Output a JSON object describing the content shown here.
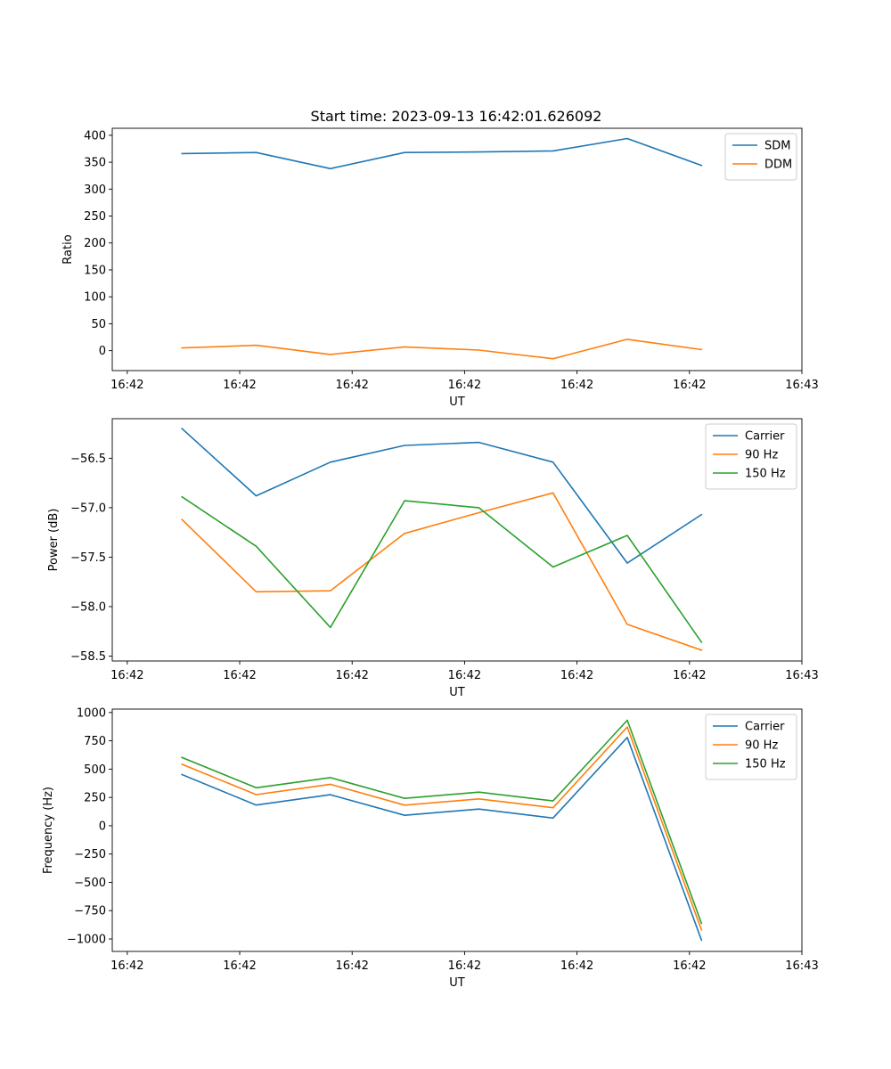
{
  "figure": {
    "title": "Start time: 2023-09-13 16:42:01.626092"
  },
  "chart_data": [
    {
      "type": "line",
      "title": "Start time: 2023-09-13 16:42:01.626092",
      "xlabel": "UT",
      "ylabel": "Ratio",
      "xlim": [
        -0.2,
        9.0
      ],
      "ylim": [
        -37,
        413
      ],
      "x_ticks": [
        {
          "value": 0,
          "label": "16:42"
        },
        {
          "value": 1.5,
          "label": "16:42"
        },
        {
          "value": 3,
          "label": "16:42"
        },
        {
          "value": 4.5,
          "label": "16:42"
        },
        {
          "value": 6,
          "label": "16:42"
        },
        {
          "value": 7.5,
          "label": "16:42"
        },
        {
          "value": 9,
          "label": "16:43"
        }
      ],
      "y_ticks": [
        {
          "value": 400,
          "label": "400"
        },
        {
          "value": 350,
          "label": "350"
        },
        {
          "value": 300,
          "label": "300"
        },
        {
          "value": 250,
          "label": "250"
        },
        {
          "value": 200,
          "label": "200"
        },
        {
          "value": 150,
          "label": "150"
        },
        {
          "value": 100,
          "label": "100"
        },
        {
          "value": 50,
          "label": "50"
        },
        {
          "value": 0,
          "label": "0"
        }
      ],
      "x": [
        0.73,
        1.72,
        2.71,
        3.7,
        4.69,
        5.68,
        6.67,
        7.66
      ],
      "series": [
        {
          "name": "SDM",
          "color": "#1f77b4",
          "values": [
            366,
            368,
            338,
            368,
            369,
            371,
            394,
            344
          ]
        },
        {
          "name": "DDM",
          "color": "#ff7f0e",
          "values": [
            5,
            10,
            -7,
            7,
            1,
            -15,
            21,
            2
          ]
        }
      ],
      "legend": "upper-right"
    },
    {
      "type": "line",
      "xlabel": "UT",
      "ylabel": "Power (dB)",
      "xlim": [
        -0.2,
        9.0
      ],
      "ylim": [
        -58.55,
        -56.1
      ],
      "x_ticks": [
        {
          "value": 0,
          "label": "16:42"
        },
        {
          "value": 1.5,
          "label": "16:42"
        },
        {
          "value": 3,
          "label": "16:42"
        },
        {
          "value": 4.5,
          "label": "16:42"
        },
        {
          "value": 6,
          "label": "16:42"
        },
        {
          "value": 7.5,
          "label": "16:42"
        },
        {
          "value": 9,
          "label": "16:43"
        }
      ],
      "y_ticks": [
        {
          "value": -56.5,
          "label": "−56.5"
        },
        {
          "value": -57.0,
          "label": "−57.0"
        },
        {
          "value": -57.5,
          "label": "−57.5"
        },
        {
          "value": -58.0,
          "label": "−58.0"
        },
        {
          "value": -58.5,
          "label": "−58.5"
        }
      ],
      "x": [
        0.73,
        1.72,
        2.71,
        3.7,
        4.69,
        5.68,
        6.67,
        7.66
      ],
      "series": [
        {
          "name": "Carrier",
          "color": "#1f77b4",
          "values": [
            -56.2,
            -56.88,
            -56.54,
            -56.37,
            -56.34,
            -56.54,
            -57.56,
            -57.07
          ]
        },
        {
          "name": "90 Hz",
          "color": "#ff7f0e",
          "values": [
            -57.12,
            -57.85,
            -57.84,
            -57.26,
            -57.05,
            -56.85,
            -58.18,
            -58.44
          ]
        },
        {
          "name": "150 Hz",
          "color": "#2ca02c",
          "values": [
            -56.89,
            -57.39,
            -58.21,
            -56.93,
            -57.0,
            -57.6,
            -57.28,
            -58.36
          ]
        }
      ],
      "legend": "upper-right"
    },
    {
      "type": "line",
      "xlabel": "UT",
      "ylabel": "Frequency (Hz)",
      "xlim": [
        -0.2,
        9.0
      ],
      "ylim": [
        -1110,
        1030
      ],
      "x_ticks": [
        {
          "value": 0,
          "label": "16:42"
        },
        {
          "value": 1.5,
          "label": "16:42"
        },
        {
          "value": 3,
          "label": "16:42"
        },
        {
          "value": 4.5,
          "label": "16:42"
        },
        {
          "value": 6,
          "label": "16:42"
        },
        {
          "value": 7.5,
          "label": "16:42"
        },
        {
          "value": 9,
          "label": "16:43"
        }
      ],
      "y_ticks": [
        {
          "value": 1000,
          "label": "1000"
        },
        {
          "value": 750,
          "label": "750"
        },
        {
          "value": 500,
          "label": "500"
        },
        {
          "value": 250,
          "label": "250"
        },
        {
          "value": 0,
          "label": "0"
        },
        {
          "value": -250,
          "label": "−250"
        },
        {
          "value": -500,
          "label": "−500"
        },
        {
          "value": -750,
          "label": "−750"
        },
        {
          "value": -1000,
          "label": "−1000"
        }
      ],
      "x": [
        0.73,
        1.72,
        2.71,
        3.7,
        4.69,
        5.68,
        6.67,
        7.66
      ],
      "series": [
        {
          "name": "Carrier",
          "color": "#1f77b4",
          "values": [
            452,
            183,
            274,
            92,
            147,
            68,
            780,
            -1010
          ]
        },
        {
          "name": "90 Hz",
          "color": "#ff7f0e",
          "values": [
            543,
            275,
            366,
            182,
            237,
            159,
            872,
            -920
          ]
        },
        {
          "name": "150 Hz",
          "color": "#2ca02c",
          "values": [
            603,
            335,
            425,
            242,
            297,
            219,
            932,
            -862
          ]
        }
      ],
      "legend": "upper-right"
    }
  ]
}
